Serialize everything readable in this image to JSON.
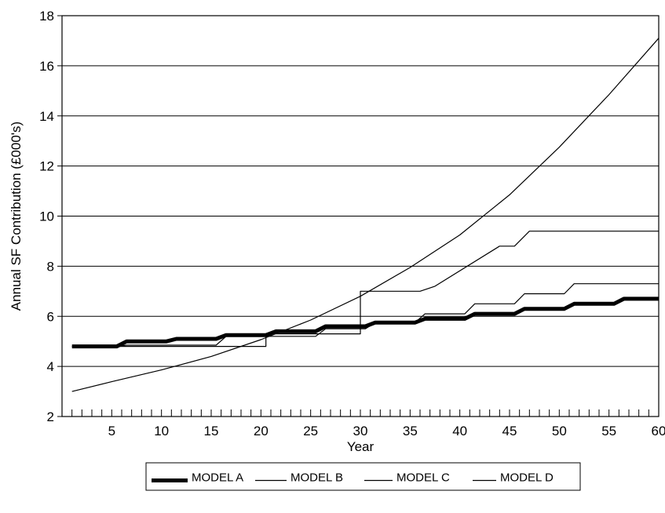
{
  "chart_data": {
    "type": "line",
    "title": "",
    "xlabel": "Year",
    "ylabel": "Annual SF Contribution (£000's)",
    "xlim": [
      0,
      60
    ],
    "ylim": [
      2,
      18
    ],
    "x_ticks": [
      5,
      10,
      15,
      20,
      25,
      30,
      35,
      40,
      45,
      50,
      55,
      60
    ],
    "y_ticks": [
      2,
      4,
      6,
      8,
      10,
      12,
      14,
      16,
      18
    ],
    "grid": "horizontal",
    "legend_position": "bottom",
    "series": [
      {
        "name": "MODEL A",
        "style": "thick",
        "points": [
          [
            1,
            4.8
          ],
          [
            5.5,
            4.8
          ],
          [
            6.5,
            5.0
          ],
          [
            10.5,
            5.0
          ],
          [
            11.5,
            5.1
          ],
          [
            15.5,
            5.1
          ],
          [
            16.5,
            5.25
          ],
          [
            20.5,
            5.25
          ],
          [
            21.5,
            5.4
          ],
          [
            25.5,
            5.4
          ],
          [
            26.5,
            5.6
          ],
          [
            30.5,
            5.6
          ],
          [
            31.5,
            5.75
          ],
          [
            35.5,
            5.75
          ],
          [
            36.5,
            5.9
          ],
          [
            40.5,
            5.9
          ],
          [
            41.5,
            6.1
          ],
          [
            45.5,
            6.1
          ],
          [
            46.5,
            6.3
          ],
          [
            50.5,
            6.3
          ],
          [
            51.5,
            6.5
          ],
          [
            55.5,
            6.5
          ],
          [
            56.5,
            6.7
          ],
          [
            60,
            6.7
          ]
        ]
      },
      {
        "name": "MODEL B",
        "style": "thin",
        "points": [
          [
            1,
            4.8
          ],
          [
            5.5,
            4.8
          ],
          [
            6.5,
            4.85
          ],
          [
            15.5,
            4.85
          ],
          [
            16.5,
            5.2
          ],
          [
            25.5,
            5.2
          ],
          [
            26.5,
            5.5
          ],
          [
            30.5,
            5.5
          ],
          [
            31.5,
            5.75
          ],
          [
            35.5,
            5.75
          ],
          [
            36.5,
            6.1
          ],
          [
            40.5,
            6.1
          ],
          [
            41.5,
            6.5
          ],
          [
            45.5,
            6.5
          ],
          [
            46.5,
            6.9
          ],
          [
            50.5,
            6.9
          ],
          [
            51.5,
            7.3
          ],
          [
            60,
            7.3
          ]
        ]
      },
      {
        "name": "MODEL C",
        "style": "thin",
        "points": [
          [
            1,
            4.8
          ],
          [
            20.5,
            4.8
          ],
          [
            20.5,
            5.3
          ],
          [
            30,
            5.3
          ],
          [
            30,
            7.0
          ],
          [
            36,
            7.0
          ],
          [
            37.5,
            7.2
          ],
          [
            44,
            8.8
          ],
          [
            45.5,
            8.8
          ],
          [
            47,
            9.4
          ],
          [
            60,
            9.4
          ]
        ]
      },
      {
        "name": "MODEL D",
        "style": "thin",
        "points": [
          [
            1,
            3.0
          ],
          [
            5,
            3.39
          ],
          [
            10,
            3.86
          ],
          [
            15,
            4.4
          ],
          [
            20,
            5.07
          ],
          [
            25,
            5.85
          ],
          [
            30,
            6.8
          ],
          [
            35,
            7.95
          ],
          [
            40,
            9.25
          ],
          [
            45,
            10.85
          ],
          [
            50,
            12.75
          ],
          [
            55,
            14.85
          ],
          [
            60,
            17.1
          ]
        ]
      }
    ]
  }
}
